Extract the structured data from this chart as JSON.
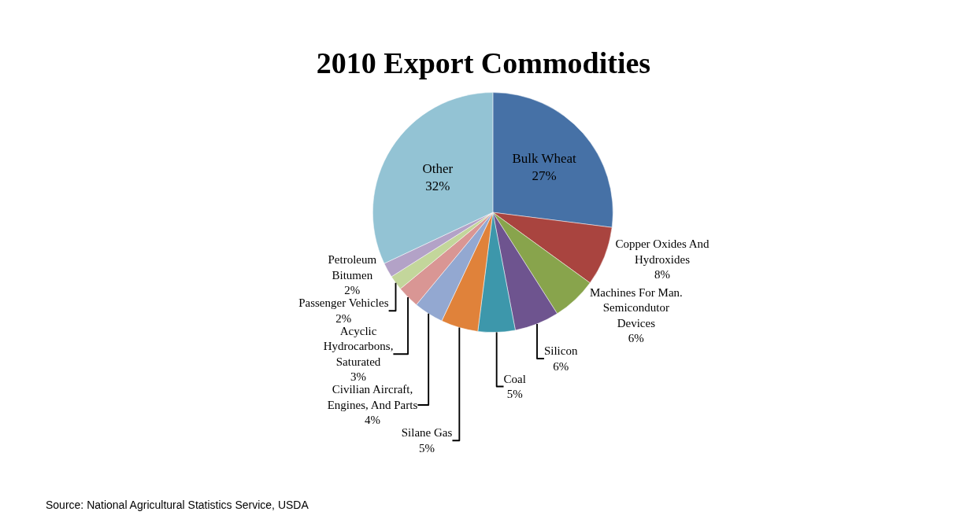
{
  "chart_data": {
    "type": "pie",
    "title": "2010 Export Commodities",
    "categories": [
      "Bulk Wheat",
      "Copper Oxides And\nHydroxides",
      "Machines For Man.\nSemicondutor\nDevices",
      "Silicon",
      "Coal",
      "Silane Gas",
      "Civilian Aircraft,\nEngines, And Parts",
      "Acyclic\nHydrocarbons,\nSaturated",
      "Passenger Vehicles",
      "Petroleum\nBitumen",
      "Other"
    ],
    "values": [
      27,
      8,
      6,
      6,
      5,
      5,
      4,
      3,
      2,
      2,
      32
    ],
    "value_labels": [
      "27%",
      "8%",
      "6%",
      "6%",
      "5%",
      "5%",
      "4%",
      "3%",
      "2%",
      "2%",
      "32%"
    ],
    "colors": [
      "#4671a6",
      "#a9443f",
      "#88a44c",
      "#6e548f",
      "#3d97ab",
      "#e0823a",
      "#93a8d1",
      "#d99694",
      "#c3d69b",
      "#b3a2c7",
      "#93c3d4"
    ],
    "annotations": [
      "Source: National Agricultural Statistics Service, USDA"
    ]
  }
}
